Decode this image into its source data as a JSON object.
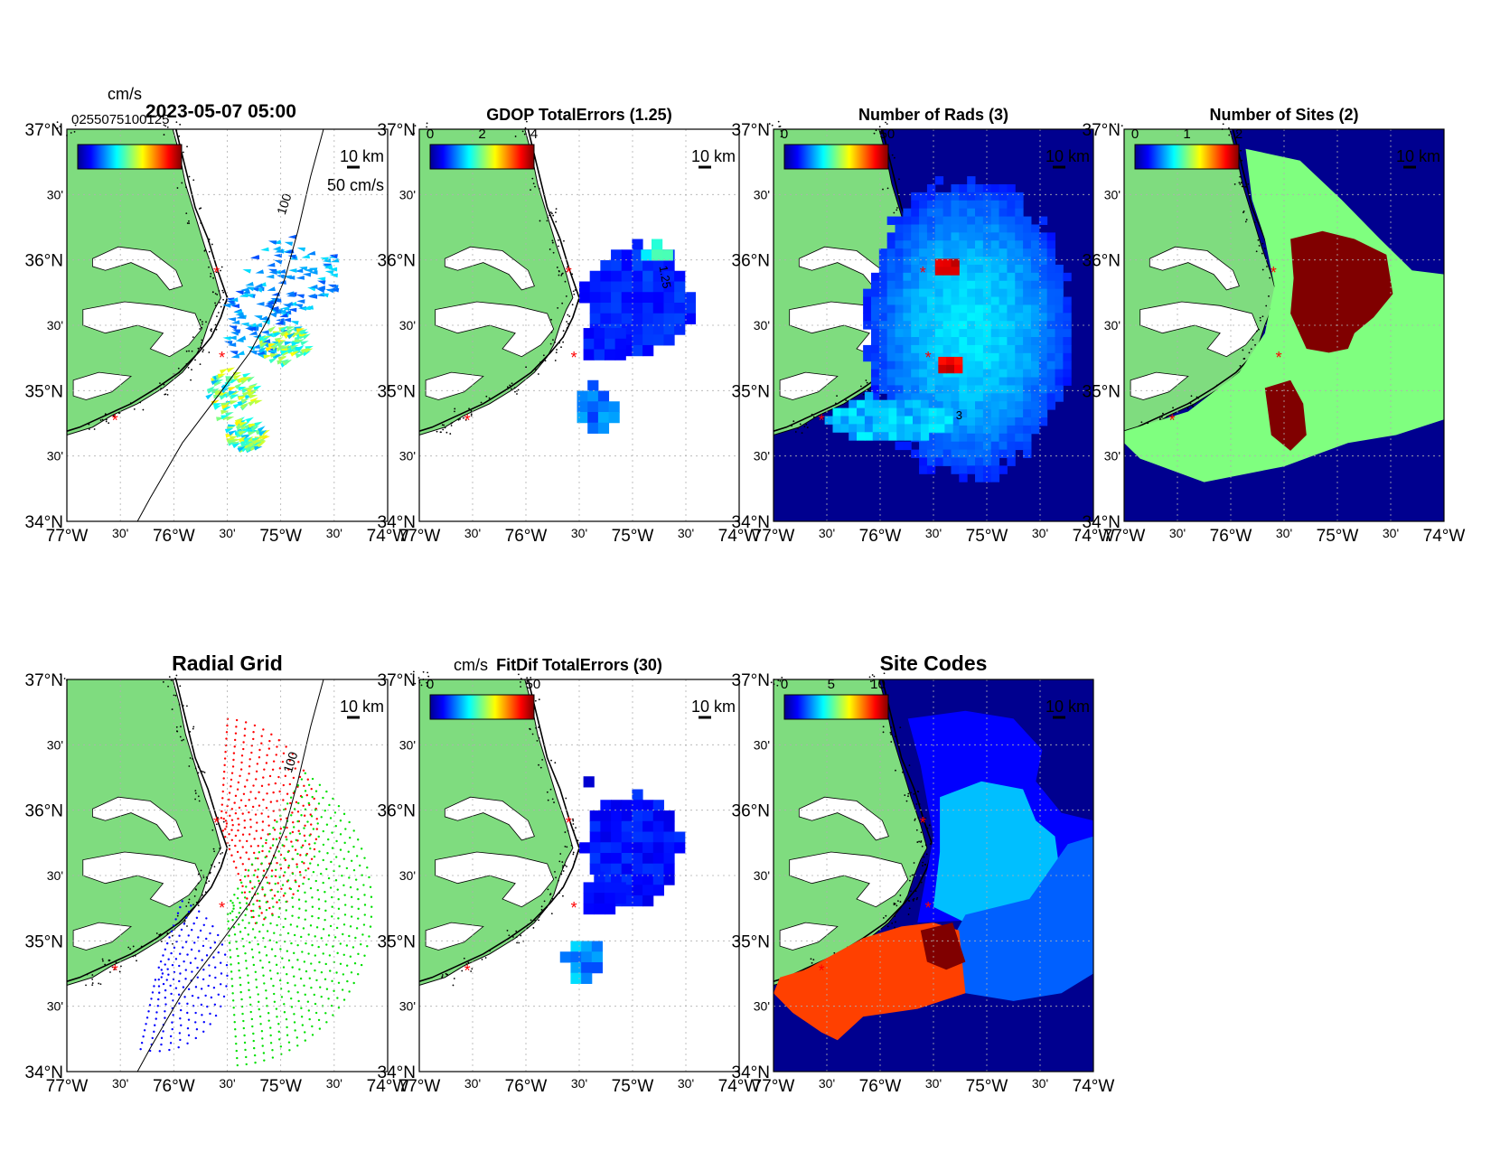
{
  "figure": {
    "timestamp": "2023-05-07 05:00",
    "colors": {
      "land": "#7fdc7f",
      "coast": "#000000",
      "ocean": "#ffffff",
      "grid": "#b0b0b0",
      "site_marker": "#ff0000",
      "dark_blue": "#00008f",
      "light_green": "#7fff7f",
      "dark_red": "#800000",
      "light_blue": "#00bfff",
      "mid_blue": "#0060ff",
      "orange_red": "#ff4000"
    }
  },
  "axes": {
    "lat_labels": [
      "37°N",
      "30'",
      "36°N",
      "30'",
      "35°N",
      "30'",
      "34°N"
    ],
    "lon_labels": [
      "77°W",
      "30'",
      "76°W",
      "30'",
      "75°W",
      "30'",
      "74°W"
    ],
    "lat_range": [
      34,
      37
    ],
    "lon_range": [
      -77,
      -74
    ]
  },
  "sites": [
    {
      "lon": -75.6,
      "lat": 35.9
    },
    {
      "lon": -75.55,
      "lat": 35.25
    },
    {
      "lon": -76.55,
      "lat": 34.77
    }
  ],
  "panels": [
    {
      "id": "currents",
      "title": "",
      "cb_label": "cm/s",
      "cb_ticks": [],
      "cb_overlap_text": "0255075100125",
      "ref_vector": "50 cm/s",
      "scale": "10 km",
      "contour_label": "100"
    },
    {
      "id": "gdop",
      "title": "GDOP TotalErrors (1.25)",
      "cb_label": "",
      "cb_ticks": [
        "0",
        "2",
        "4"
      ],
      "scale": "10 km",
      "contour_label": "1.25"
    },
    {
      "id": "nrads",
      "title": "Number of Rads (3)",
      "cb_label": "",
      "cb_ticks": [
        "0",
        "50"
      ],
      "scale": "10 km",
      "contour_label": "3"
    },
    {
      "id": "nsites",
      "title": "Number of Sites (2)",
      "cb_label": "",
      "cb_ticks": [
        "0",
        "1",
        "2"
      ],
      "scale": "10 km"
    },
    {
      "id": "radial",
      "title": "Radial Grid",
      "cb_label": "",
      "cb_ticks": [],
      "scale": "10 km",
      "contour_label": "100"
    },
    {
      "id": "fitdif",
      "title": "FitDif TotalErrors (30)",
      "cb_label": "cm/s",
      "cb_ticks": [
        "0",
        "50"
      ],
      "scale": "10 km"
    },
    {
      "id": "sitecodes",
      "title": "Site Codes",
      "cb_label": "",
      "cb_ticks": [
        "0",
        "5",
        "10"
      ],
      "scale": "10 km"
    }
  ]
}
